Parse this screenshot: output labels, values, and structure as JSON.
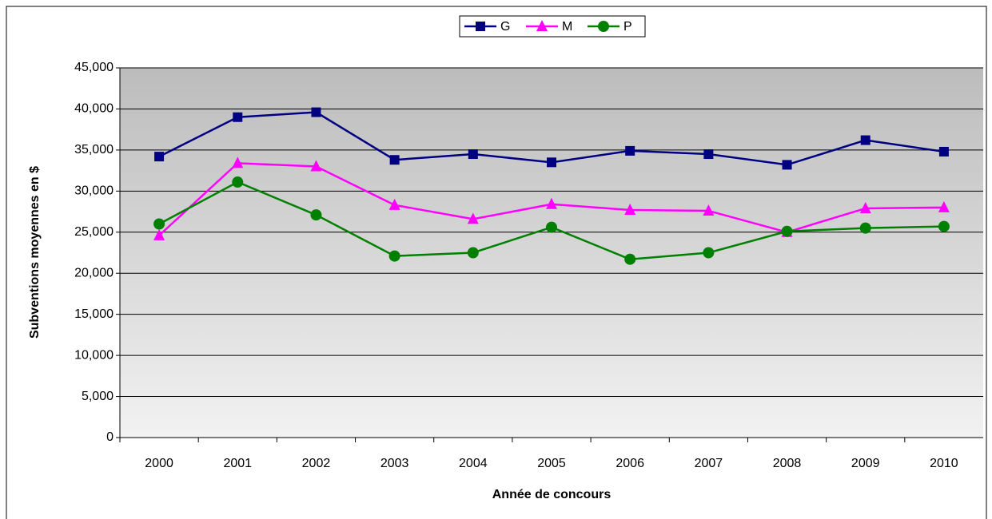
{
  "chart_data": {
    "type": "line",
    "x_label": "Année de concours",
    "y_label": "Subventions moyennes en $",
    "categories": [
      "2000",
      "2001",
      "2002",
      "2003",
      "2004",
      "2005",
      "2006",
      "2007",
      "2008",
      "2009",
      "2010"
    ],
    "series": [
      {
        "name": "G",
        "color": "#000080",
        "marker": "square",
        "values": [
          34200,
          39000,
          39600,
          33800,
          34500,
          33500,
          34900,
          34500,
          33200,
          36200,
          34800
        ]
      },
      {
        "name": "M",
        "color": "#ff00ff",
        "marker": "triangle",
        "values": [
          24600,
          33400,
          33000,
          28300,
          26600,
          28400,
          27700,
          27600,
          25000,
          27900,
          28000
        ]
      },
      {
        "name": "P",
        "color": "#008000",
        "marker": "circle",
        "values": [
          26000,
          31100,
          27100,
          22100,
          22500,
          25600,
          21700,
          22500,
          25100,
          25500,
          25700
        ]
      }
    ],
    "ylim": [
      0,
      45000
    ],
    "yticks": [
      0,
      {
        "value": 5000,
        "label": "5,000"
      },
      {
        "value": 10000,
        "label": "10,000"
      },
      {
        "value": 15000,
        "label": "15,000"
      },
      {
        "value": 20000,
        "label": "20,000"
      },
      {
        "value": 25000,
        "label": "25,000"
      },
      {
        "value": 30000,
        "label": "30,000"
      },
      {
        "value": 35000,
        "label": "35,000"
      },
      {
        "value": 40000,
        "label": "40,000"
      },
      {
        "value": 45000,
        "label": "45,000"
      }
    ],
    "grid": true,
    "legend": "top"
  }
}
